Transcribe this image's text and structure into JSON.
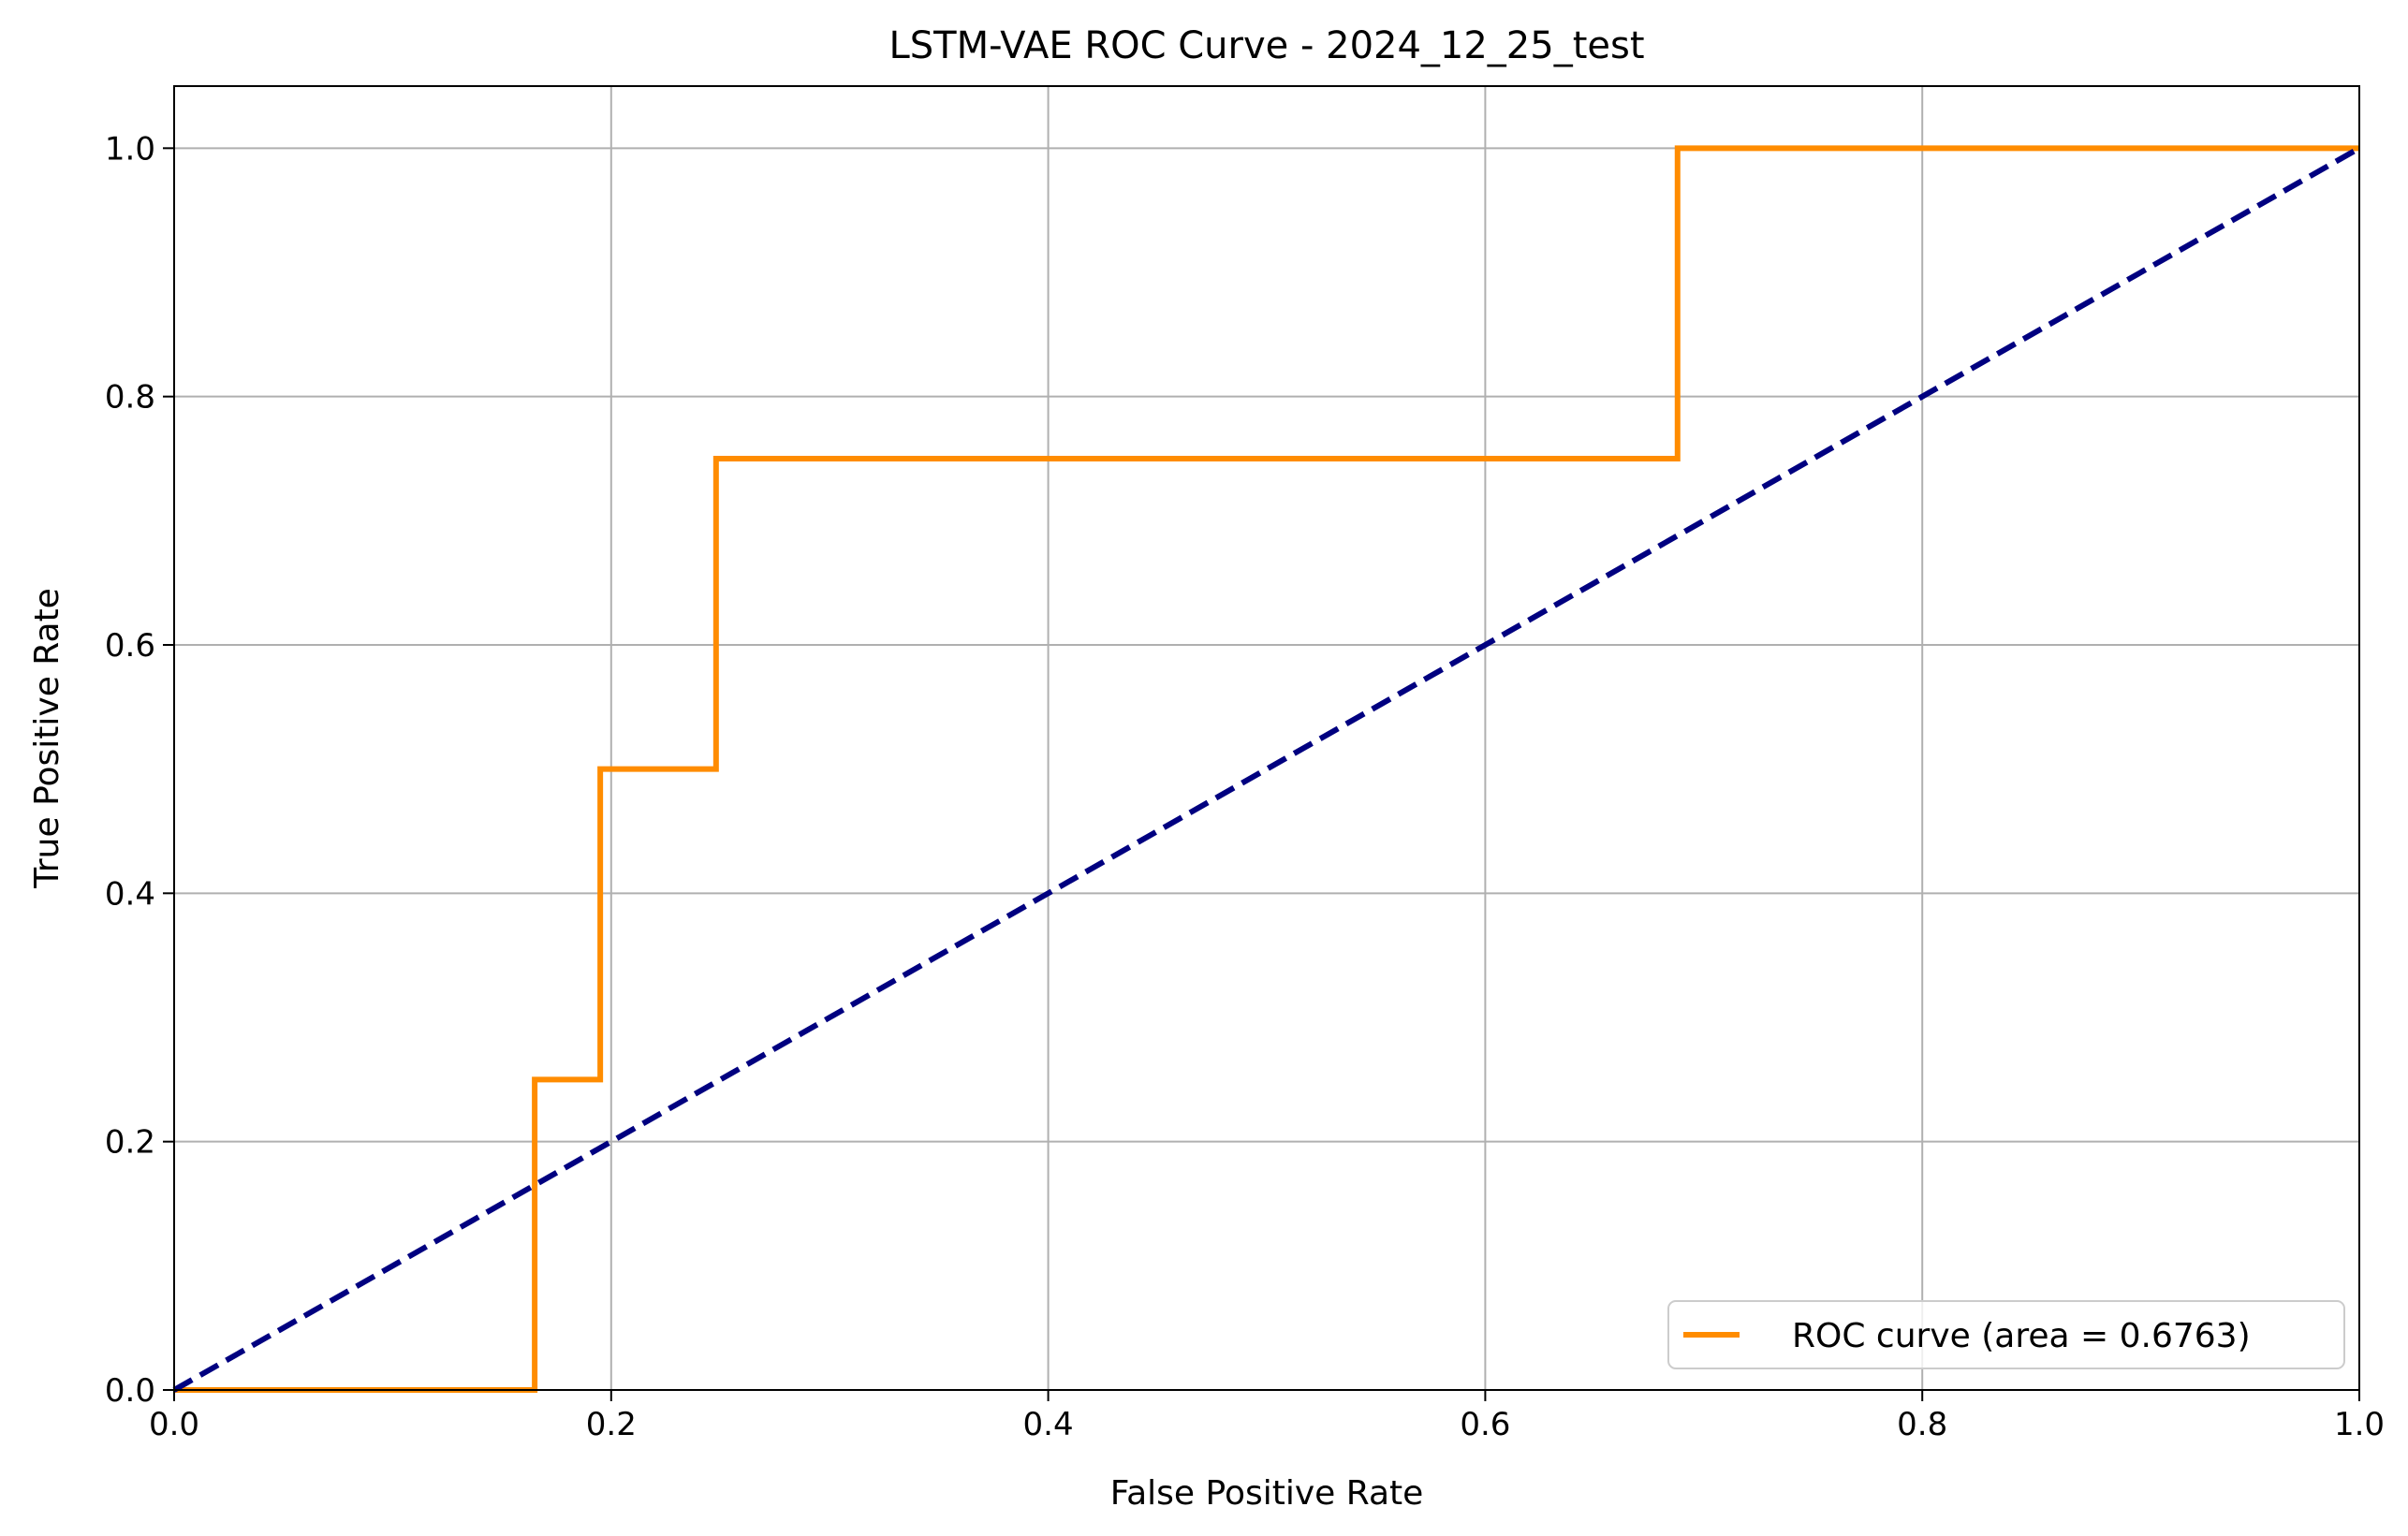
{
  "chart_data": {
    "type": "line",
    "title": "LSTM-VAE ROC Curve - 2024_12_25_test",
    "xlabel": "False Positive Rate",
    "ylabel": "True Positive Rate",
    "xlim": [
      0.0,
      1.0
    ],
    "ylim": [
      0.0,
      1.05
    ],
    "xticks": [
      0.0,
      0.2,
      0.4,
      0.6,
      0.8,
      1.0
    ],
    "xtick_labels": [
      "0.0",
      "0.2",
      "0.4",
      "0.6",
      "0.8",
      "1.0"
    ],
    "yticks": [
      0.0,
      0.2,
      0.4,
      0.6,
      0.8,
      1.0
    ],
    "ytick_labels": [
      "0.0",
      "0.2",
      "0.4",
      "0.6",
      "0.8",
      "1.0"
    ],
    "grid": true,
    "legend_position": "lower-right",
    "series": [
      {
        "name": "ROC curve (area = 0.6763)",
        "color": "#ff8c00",
        "style": "solid",
        "x": [
          0.0,
          0.0,
          0.165,
          0.165,
          0.195,
          0.195,
          0.248,
          0.248,
          0.688,
          0.688,
          1.0
        ],
        "y": [
          0.0,
          0.0,
          0.0,
          0.25,
          0.25,
          0.5,
          0.5,
          0.75,
          0.75,
          1.0,
          1.0
        ]
      },
      {
        "color": "#000080",
        "style": "dashed",
        "x": [
          0.0,
          1.0
        ],
        "y": [
          0.0,
          1.0
        ]
      }
    ]
  }
}
